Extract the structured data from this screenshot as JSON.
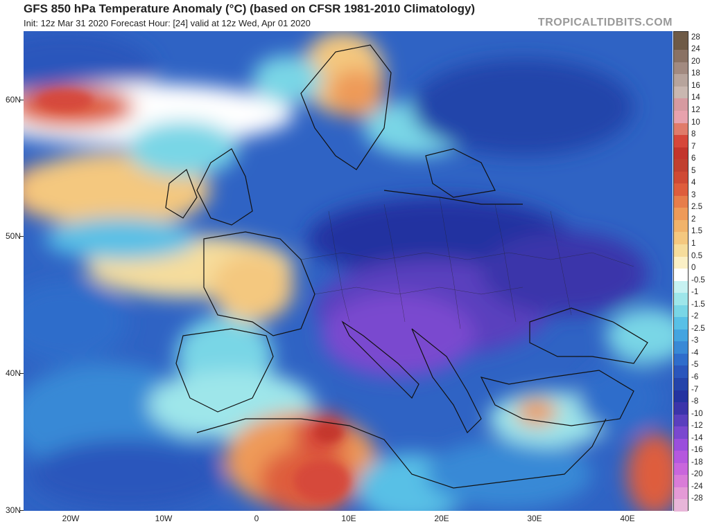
{
  "header": {
    "title": "GFS 850 hPa Temperature Anomaly (°C) (based on CFSR 1981-2010 Climatology)",
    "subtitle": "Init: 12z Mar 31 2020   Forecast Hour: [24]   valid at 12z Wed, Apr 01 2020",
    "brand": "TROPICALTIDBITS.COM"
  },
  "map": {
    "lat_labels": [
      "60N",
      "50N",
      "40N",
      "30N"
    ],
    "lon_labels": [
      "20W",
      "10W",
      "0",
      "10E",
      "20E",
      "30E",
      "40E"
    ]
  },
  "colorbar": {
    "levels": [
      "28",
      "24",
      "20",
      "18",
      "16",
      "14",
      "12",
      "10",
      "8",
      "7",
      "6",
      "5",
      "4",
      "3",
      "2.5",
      "2",
      "1.5",
      "1",
      "0.5",
      "0",
      "-0.5",
      "-1",
      "-1.5",
      "-2",
      "-2.5",
      "-3",
      "-4",
      "-5",
      "-6",
      "-7",
      "-8",
      "-10",
      "-12",
      "-14",
      "-16",
      "-18",
      "-20",
      "-24",
      "-28"
    ],
    "colors": [
      "#6e5a46",
      "#8a7264",
      "#a28a80",
      "#b7a49c",
      "#c9b7b0",
      "#d69aa0",
      "#e7a2ad",
      "#e07b6a",
      "#d6473a",
      "#c3352c",
      "#c1402f",
      "#cf4a34",
      "#de5d3c",
      "#e77d4a",
      "#ee9a58",
      "#f1b36a",
      "#f4c87f",
      "#f6dd9c",
      "#fbf0c6",
      "#ffffff",
      "#c7f2f2",
      "#9ee6ea",
      "#79d6e6",
      "#58c0e6",
      "#44a4e0",
      "#3989d6",
      "#2f6dcb",
      "#2a56bc",
      "#2444aa",
      "#2433a0",
      "#3b34aa",
      "#5a3fbe",
      "#7a48cf",
      "#9a4fdc",
      "#b558de",
      "#c966dc",
      "#d97cd8",
      "#e49ad6",
      "#e8b6d9"
    ]
  }
}
